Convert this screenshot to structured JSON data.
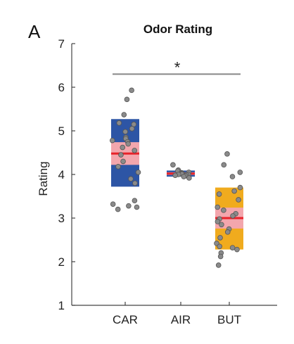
{
  "panel_label": "A",
  "chart_data": {
    "type": "scatter",
    "title": "Odor Rating",
    "xlabel": "",
    "ylabel": "Rating",
    "ylim": [
      1,
      7
    ],
    "yticks": [
      1,
      2,
      3,
      4,
      5,
      6,
      7
    ],
    "categories": [
      "CAR",
      "AIR",
      "BUT"
    ],
    "grid": false,
    "significance": {
      "from": "CAR",
      "to": "BUT",
      "label": "*",
      "y": 6.3
    },
    "groups": [
      {
        "name": "CAR",
        "color": "#2d55a5",
        "ci_color": "#f3a6ad",
        "mean_color": "#e8232a",
        "mean": 4.48,
        "sd_range": [
          3.72,
          5.27
        ],
        "ci_range": [
          4.22,
          4.74
        ],
        "points": [
          5.93,
          5.72,
          5.37,
          5.18,
          5.15,
          5.05,
          4.98,
          4.85,
          4.82,
          4.78,
          4.75,
          4.7,
          4.62,
          4.55,
          4.45,
          4.3,
          4.18,
          4.05,
          3.9,
          3.8,
          3.4,
          3.32,
          3.28,
          3.25,
          3.2
        ]
      },
      {
        "name": "AIR",
        "color": "#2d55a5",
        "ci_color": "#f3a6ad",
        "mean_color": "#e8232a",
        "mean": 4.02,
        "sd_range": [
          3.95,
          4.09
        ],
        "ci_range": [
          3.99,
          4.05
        ],
        "points": [
          4.22,
          4.1,
          4.08,
          4.05,
          4.04,
          4.03,
          4.02,
          4.02,
          4.01,
          4.0,
          4.0,
          3.99,
          3.98,
          3.97,
          3.95,
          3.92
        ]
      },
      {
        "name": "BUT",
        "color": "#f0ab1e",
        "ci_color": "#f3a6ad",
        "mean_color": "#e8232a",
        "mean": 3.0,
        "sd_range": [
          2.28,
          3.7
        ],
        "ci_range": [
          2.76,
          3.24
        ],
        "points": [
          4.47,
          4.22,
          4.05,
          3.95,
          3.7,
          3.62,
          3.55,
          3.42,
          3.25,
          3.18,
          3.1,
          3.05,
          2.98,
          2.92,
          2.85,
          2.75,
          2.68,
          2.55,
          2.42,
          2.35,
          2.32,
          2.28,
          2.2,
          2.12,
          1.92
        ]
      }
    ]
  }
}
